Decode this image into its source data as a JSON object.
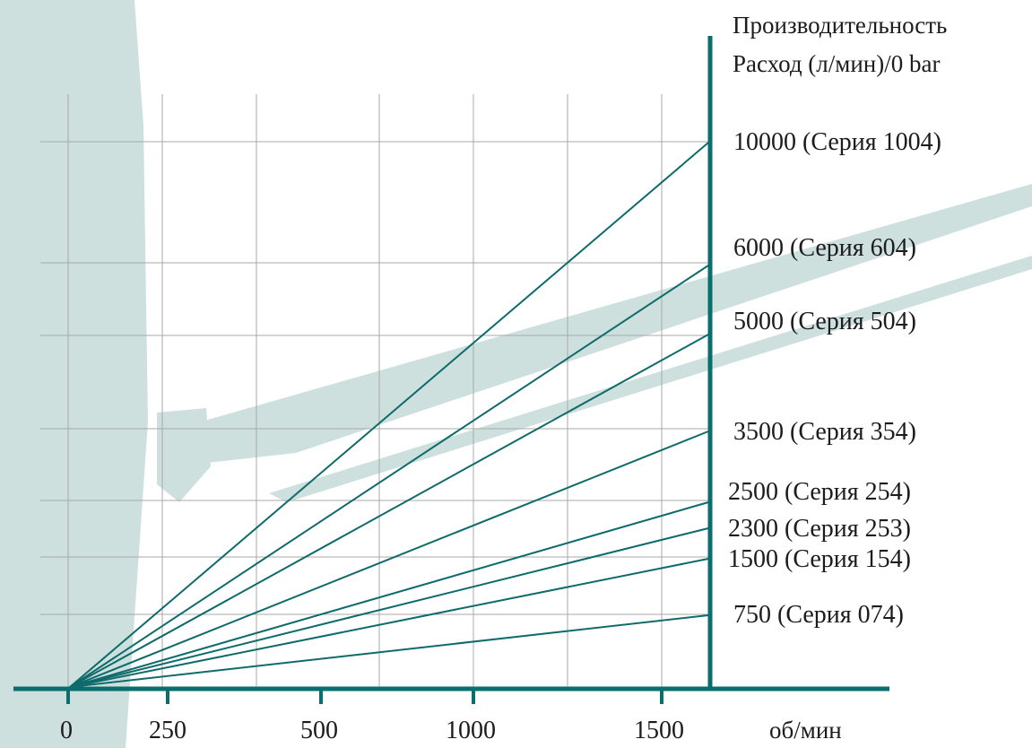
{
  "colors": {
    "axis": "#0b6e6e",
    "series": "#0f6b6b",
    "grid": "#a8a8a8",
    "backdrop": "#cde0de",
    "text": "#1c1c1c"
  },
  "chart_data": {
    "type": "line",
    "ylabel_lines": [
      "Производительность",
      "Расход (л/мин)/0 bar"
    ],
    "xlabel": "об/мин",
    "x_ticks": [
      "0",
      "250",
      "500",
      "1000",
      "1500"
    ],
    "grid": true,
    "series": [
      {
        "name": "10000 (Серия 1004)",
        "end_value": 10000
      },
      {
        "name": "6000 (Серия 604)",
        "end_value": 6000
      },
      {
        "name": "5000 (Серия 504)",
        "end_value": 5000
      },
      {
        "name": "3500 (Серия 354)",
        "end_value": 3500
      },
      {
        "name": "2500 (Серия 254)",
        "end_value": 2500
      },
      {
        "name": "2300 (Серия 253)",
        "end_value": 2300
      },
      {
        "name": "1500 (Серия 154)",
        "end_value": 1500
      },
      {
        "name": "750 (Серия 074)",
        "end_value": 750
      }
    ]
  }
}
